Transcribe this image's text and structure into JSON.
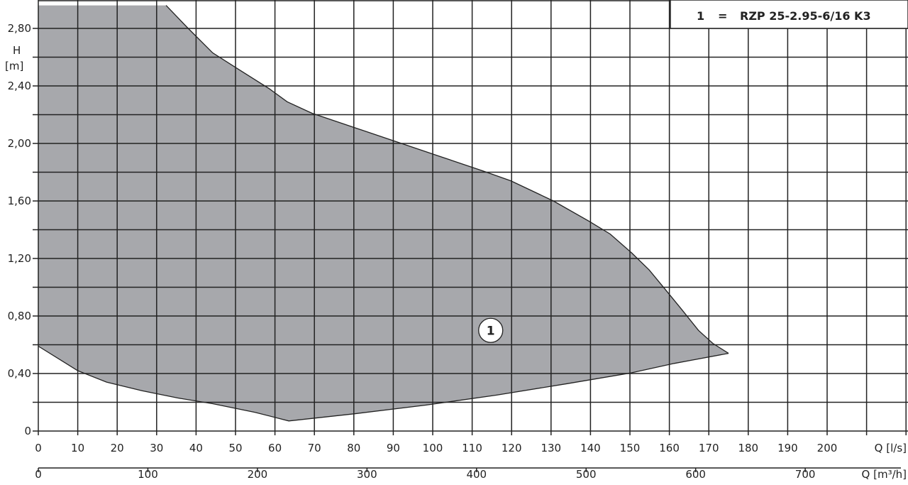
{
  "chart_data": {
    "type": "area",
    "title": "",
    "legend": {
      "number": "1",
      "equals": "=",
      "label": "RZP 25-2.95-6/16 K3",
      "placement": "top-right"
    },
    "ylabel": "H",
    "yunit": "[m]",
    "xlabel": "Q [l/s]",
    "x2label": "Q [m³/h]",
    "xlim": [
      0,
      220
    ],
    "ylim": [
      0,
      2.96
    ],
    "grid": true,
    "y_ticks": [
      "0",
      "0,40",
      "0,80",
      "1,20",
      "1,60",
      "2,00",
      "2,40",
      "2,80"
    ],
    "y_tick_values": [
      0,
      0.4,
      0.8,
      1.2,
      1.6,
      2.0,
      2.4,
      2.8
    ],
    "x_ticks": [
      "0",
      "10",
      "20",
      "30",
      "40",
      "50",
      "60",
      "70",
      "80",
      "90",
      "100",
      "110",
      "120",
      "130",
      "140",
      "150",
      "160",
      "170",
      "180",
      "190",
      "200"
    ],
    "x2_ticks": [
      "0",
      "100",
      "200",
      "300",
      "400",
      "500",
      "600",
      "700"
    ],
    "colors": {
      "fill": "#a7a8ac",
      "line": "#222222"
    },
    "series": [
      {
        "name": "1",
        "upper": [
          [
            32.4,
            2.96
          ],
          [
            38,
            2.8
          ],
          [
            44.2,
            2.63
          ],
          [
            50.5,
            2.52
          ],
          [
            58.6,
            2.38
          ],
          [
            63.1,
            2.29
          ],
          [
            69.4,
            2.21
          ],
          [
            80.2,
            2.11
          ],
          [
            91,
            2.01
          ],
          [
            101.8,
            1.91
          ],
          [
            112.6,
            1.81
          ],
          [
            119.8,
            1.74
          ],
          [
            130.6,
            1.6
          ],
          [
            139.6,
            1.46
          ],
          [
            145,
            1.37
          ],
          [
            150.4,
            1.24
          ],
          [
            154.9,
            1.12
          ],
          [
            159.4,
            0.97
          ],
          [
            163,
            0.85
          ],
          [
            167.4,
            0.7
          ],
          [
            171,
            0.61
          ],
          [
            175,
            0.54
          ]
        ],
        "lower": [
          [
            175,
            0.54
          ],
          [
            161.2,
            0.47
          ],
          [
            150.4,
            0.405
          ],
          [
            134.2,
            0.33
          ],
          [
            116.2,
            0.25
          ],
          [
            98.2,
            0.18
          ],
          [
            80.2,
            0.12
          ],
          [
            63.5,
            0.07
          ],
          [
            55,
            0.13
          ],
          [
            44.2,
            0.19
          ],
          [
            35.3,
            0.23
          ],
          [
            26.3,
            0.28
          ],
          [
            17.3,
            0.34
          ],
          [
            10,
            0.42
          ],
          [
            0,
            0.59
          ]
        ],
        "label_position": [
          114.7,
          0.7
        ]
      }
    ]
  }
}
